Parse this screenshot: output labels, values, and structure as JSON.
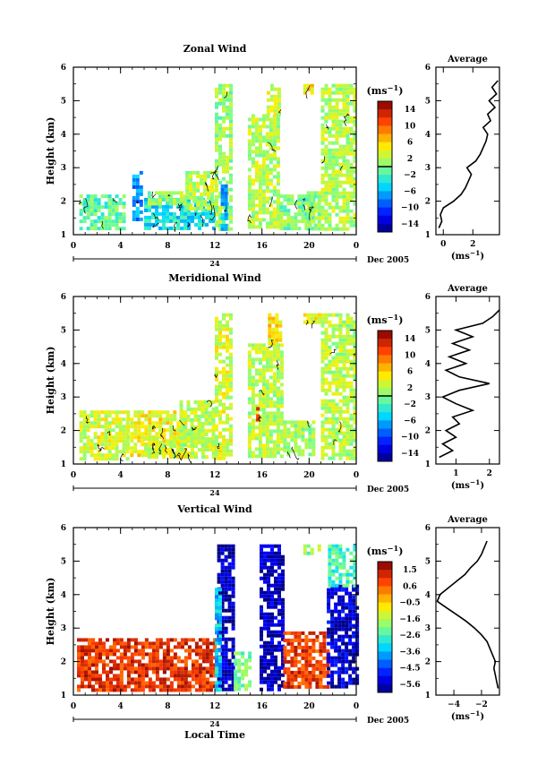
{
  "figure": {
    "date_label": "Dec 2005",
    "day_label": "24",
    "xlabel": "Local Time"
  },
  "colorbar_unit": "(ms",
  "unit_exponent": "−1",
  "unit_close": ")",
  "chart_data": [
    {
      "type": "heatmap",
      "title": "Zonal Wind",
      "ylabel": "Height (km)",
      "xlabel": "",
      "x_ticks": [
        "0",
        "4",
        "8",
        "12",
        "16",
        "20",
        "0"
      ],
      "y_ticks": [
        "1",
        "2",
        "3",
        "4",
        "5",
        "6"
      ],
      "xlim_hours": [
        0,
        24
      ],
      "ylim_km": [
        1,
        6
      ],
      "colorbar": {
        "ticks": [
          "14",
          "10",
          "6",
          "2",
          "−2",
          "−6",
          "−10",
          "−14"
        ],
        "range": [
          -16,
          16
        ],
        "zero_marker": 0
      },
      "data_extent_km": [
        1.2,
        5.5
      ],
      "regions": [
        {
          "x": [
            0.5,
            4.2
          ],
          "y": [
            1.2,
            2.2
          ],
          "v": -1
        },
        {
          "x": [
            5.0,
            5.8
          ],
          "y": [
            1.5,
            2.9
          ],
          "v": -7
        },
        {
          "x": [
            6.0,
            12.0
          ],
          "y": [
            1.2,
            2.1
          ],
          "v": -4
        },
        {
          "x": [
            6.3,
            9.5
          ],
          "y": [
            1.9,
            2.3
          ],
          "v": 1
        },
        {
          "x": [
            9.5,
            12.2
          ],
          "y": [
            1.8,
            2.9
          ],
          "v": 2
        },
        {
          "x": [
            12.0,
            13.4
          ],
          "y": [
            1.2,
            5.5
          ],
          "v": 1
        },
        {
          "x": [
            12.5,
            13.0
          ],
          "y": [
            1.2,
            2.5
          ],
          "v": -6
        },
        {
          "x": [
            14.8,
            17.5
          ],
          "y": [
            1.2,
            4.6
          ],
          "v": 2
        },
        {
          "x": [
            16.4,
            17.6
          ],
          "y": [
            4.6,
            5.5
          ],
          "v": 3
        },
        {
          "x": [
            17.5,
            20.5
          ],
          "y": [
            1.2,
            2.2
          ],
          "v": 0
        },
        {
          "x": [
            19.8,
            21.0
          ],
          "y": [
            1.2,
            2.3
          ],
          "v": 1
        },
        {
          "x": [
            21.0,
            24.0
          ],
          "y": [
            1.2,
            5.5
          ],
          "v": 2
        },
        {
          "x": [
            19.5,
            20.2
          ],
          "y": [
            5.2,
            5.5
          ],
          "v": 5
        }
      ],
      "profile": {
        "title": "Average",
        "xlabel": "(ms",
        "x_ticks": [
          "0",
          "2"
        ],
        "xlim": [
          -0.5,
          3.8
        ],
        "heights": [
          1.2,
          1.4,
          1.6,
          1.8,
          2.0,
          2.2,
          2.4,
          2.6,
          2.8,
          3.0,
          3.2,
          3.4,
          3.6,
          3.8,
          4.0,
          4.2,
          4.4,
          4.6,
          4.8,
          5.0,
          5.2,
          5.4,
          5.6
        ],
        "values": [
          -0.3,
          -0.1,
          -0.2,
          0.0,
          0.7,
          1.2,
          1.5,
          1.7,
          1.9,
          1.6,
          2.2,
          2.5,
          2.7,
          2.9,
          3.0,
          2.7,
          3.2,
          3.0,
          3.5,
          3.1,
          3.6,
          3.3,
          3.7
        ]
      }
    },
    {
      "type": "heatmap",
      "title": "Meridional Wind",
      "ylabel": "Height (km)",
      "xlabel": "",
      "x_ticks": [
        "0",
        "4",
        "8",
        "12",
        "16",
        "20",
        "0"
      ],
      "y_ticks": [
        "1",
        "2",
        "3",
        "4",
        "5",
        "6"
      ],
      "xlim_hours": [
        0,
        24
      ],
      "ylim_km": [
        1,
        6
      ],
      "colorbar": {
        "ticks": [
          "14",
          "10",
          "6",
          "2",
          "−2",
          "−6",
          "−10",
          "−14"
        ],
        "range": [
          -16,
          16
        ],
        "zero_marker": 0
      },
      "data_extent_km": [
        1.2,
        5.5
      ],
      "regions": [
        {
          "x": [
            0.5,
            4.5
          ],
          "y": [
            1.2,
            2.6
          ],
          "v": 3
        },
        {
          "x": [
            4.5,
            9.5
          ],
          "y": [
            1.3,
            2.6
          ],
          "v": 4
        },
        {
          "x": [
            6.0,
            12.0
          ],
          "y": [
            1.2,
            1.8
          ],
          "v": 3
        },
        {
          "x": [
            9.0,
            11.8
          ],
          "y": [
            1.6,
            2.9
          ],
          "v": 2
        },
        {
          "x": [
            12.0,
            13.4
          ],
          "y": [
            1.2,
            5.5
          ],
          "v": 3
        },
        {
          "x": [
            14.8,
            17.6
          ],
          "y": [
            1.2,
            4.6
          ],
          "v": 2
        },
        {
          "x": [
            15.5,
            15.8
          ],
          "y": [
            2.3,
            2.7
          ],
          "v": 12
        },
        {
          "x": [
            16.5,
            17.6
          ],
          "y": [
            4.6,
            5.5
          ],
          "v": 5
        },
        {
          "x": [
            17.8,
            20.5
          ],
          "y": [
            1.3,
            2.3
          ],
          "v": 1
        },
        {
          "x": [
            21.0,
            24.0
          ],
          "y": [
            1.2,
            5.5
          ],
          "v": 2
        },
        {
          "x": [
            19.5,
            21.0
          ],
          "y": [
            5.2,
            5.5
          ],
          "v": 4
        }
      ],
      "profile": {
        "title": "Average",
        "xlabel": "(ms",
        "x_ticks": [
          "1",
          "2"
        ],
        "xlim": [
          0.4,
          2.3
        ],
        "heights": [
          1.2,
          1.4,
          1.6,
          1.8,
          2.0,
          2.2,
          2.4,
          2.6,
          2.8,
          3.0,
          3.2,
          3.4,
          3.6,
          3.8,
          4.0,
          4.2,
          4.4,
          4.6,
          4.8,
          5.0,
          5.2,
          5.4,
          5.6
        ],
        "values": [
          0.5,
          0.9,
          0.6,
          1.0,
          0.7,
          1.1,
          0.9,
          1.5,
          1.0,
          0.6,
          1.1,
          2.0,
          1.1,
          0.7,
          1.3,
          0.8,
          1.4,
          0.9,
          1.5,
          1.0,
          1.8,
          2.1,
          2.3
        ]
      }
    },
    {
      "type": "heatmap",
      "title": "Vertical Wind",
      "ylabel": "Height (km)",
      "xlabel": "Local Time",
      "x_ticks": [
        "0",
        "4",
        "8",
        "12",
        "16",
        "20",
        "0"
      ],
      "y_ticks": [
        "1",
        "2",
        "3",
        "4",
        "5",
        "6"
      ],
      "xlim_hours": [
        0,
        24
      ],
      "ylim_km": [
        1,
        6
      ],
      "colorbar": {
        "ticks": [
          "1.5",
          "0.6",
          "−0.5",
          "−1.6",
          "−2.6",
          "−3.6",
          "−4.5",
          "−5.6"
        ],
        "range": [
          -6.2,
          2.0
        ],
        "zero_marker": null
      },
      "data_extent_km": [
        1.2,
        5.5
      ],
      "regions": [
        {
          "x": [
            0.3,
            12.0
          ],
          "y": [
            1.2,
            2.7
          ],
          "v": 1.0
        },
        {
          "x": [
            12.2,
            13.6
          ],
          "y": [
            1.2,
            5.5
          ],
          "v": -5.8
        },
        {
          "x": [
            12.0,
            12.4
          ],
          "y": [
            1.2,
            4.2
          ],
          "v": -3.5
        },
        {
          "x": [
            13.6,
            15.0
          ],
          "y": [
            1.2,
            2.3
          ],
          "v": -2.2
        },
        {
          "x": [
            15.8,
            17.8
          ],
          "y": [
            1.2,
            5.5
          ],
          "v": -5.8
        },
        {
          "x": [
            17.8,
            21.5
          ],
          "y": [
            1.2,
            2.9
          ],
          "v": 0.9
        },
        {
          "x": [
            21.5,
            24.0
          ],
          "y": [
            1.2,
            4.3
          ],
          "v": -5.6
        },
        {
          "x": [
            21.6,
            24.0
          ],
          "y": [
            4.3,
            5.5
          ],
          "v": -2.6
        },
        {
          "x": [
            19.5,
            21.0
          ],
          "y": [
            5.2,
            5.5
          ],
          "v": -2.0
        }
      ],
      "profile": {
        "title": "Average",
        "xlabel": "(ms",
        "x_ticks": [
          "−4",
          "−2"
        ],
        "xlim": [
          -5.3,
          -0.7
        ],
        "heights": [
          1.2,
          1.4,
          1.6,
          1.8,
          2.0,
          2.2,
          2.4,
          2.6,
          2.8,
          3.0,
          3.2,
          3.4,
          3.6,
          3.8,
          4.0,
          4.2,
          4.4,
          4.6,
          4.8,
          5.0,
          5.2,
          5.4,
          5.6
        ],
        "values": [
          -0.8,
          -0.9,
          -1.0,
          -1.1,
          -1.0,
          -1.2,
          -1.4,
          -1.6,
          -2.0,
          -2.5,
          -3.1,
          -3.8,
          -4.5,
          -5.2,
          -5.0,
          -4.4,
          -3.8,
          -3.2,
          -2.8,
          -2.3,
          -2.0,
          -1.8,
          -1.6
        ]
      }
    }
  ]
}
